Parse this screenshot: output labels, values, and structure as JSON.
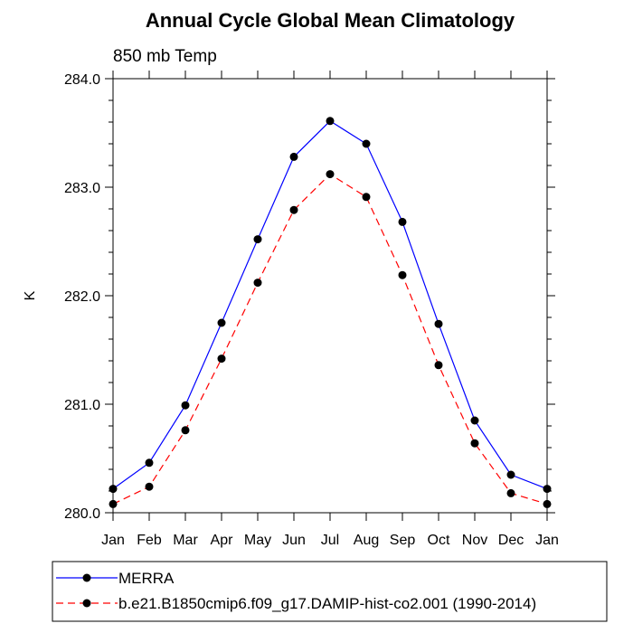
{
  "chart_data": {
    "type": "line",
    "title": "Annual Cycle Global Mean Climatology",
    "subtitle": "850 mb Temp",
    "ylabel": "K",
    "xlabel": "",
    "categories": [
      "Jan",
      "Feb",
      "Mar",
      "Apr",
      "May",
      "Jun",
      "Jul",
      "Aug",
      "Sep",
      "Oct",
      "Nov",
      "Dec",
      "Jan"
    ],
    "ylim": [
      280.0,
      284.0
    ],
    "yticks": [
      "280.0",
      "281.0",
      "282.0",
      "283.0",
      "284.0"
    ],
    "series": [
      {
        "name": "MERRA",
        "color": "#0000ff",
        "dash": "solid",
        "values": [
          280.22,
          280.46,
          280.99,
          281.75,
          282.52,
          283.28,
          283.61,
          283.4,
          282.68,
          281.74,
          280.85,
          280.35,
          280.22
        ]
      },
      {
        "name": "b.e21.B1850cmip6.f09_g17.DAMIP-hist-co2.001 (1990-2014)",
        "color": "#ff0000",
        "dash": "dashed",
        "values": [
          280.08,
          280.24,
          280.76,
          281.42,
          282.12,
          282.79,
          283.12,
          282.91,
          282.19,
          281.36,
          280.64,
          280.18,
          280.08
        ]
      }
    ],
    "legend_position": "bottom"
  }
}
